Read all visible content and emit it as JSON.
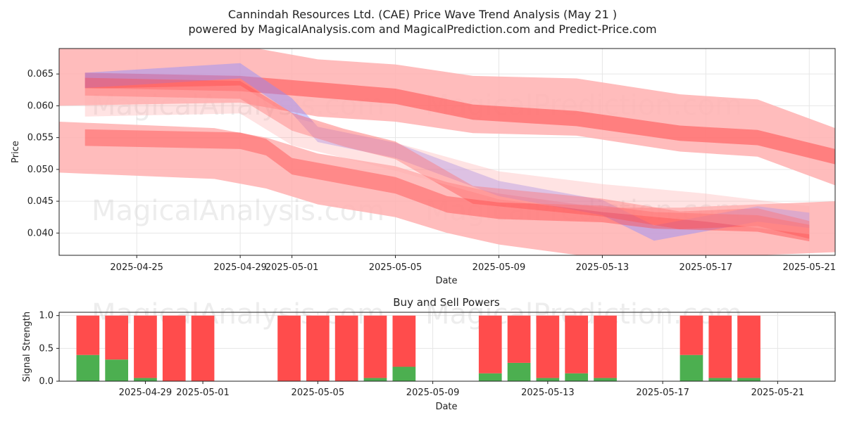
{
  "title_line1": "Cannindah Resources Ltd. (CAE) Price Wave Trend Analysis (May 21 )",
  "title_line2": "powered by MagicalAnalysis.com and MagicalPrediction.com and Predict-Price.com",
  "watermarks": [
    "MagicalAnalysis.com",
    "MagicalPrediction.com"
  ],
  "colors": {
    "red": "#ff4c4c",
    "pink": "#ffb0b0",
    "blue": "#8c8cff",
    "green": "#4caf50"
  },
  "chart_data": [
    {
      "type": "area",
      "title": "",
      "xlabel": "Date",
      "ylabel": "Price",
      "x_domain": [
        "2025-04-22",
        "2025-05-22"
      ],
      "ylim": [
        0.0365,
        0.069
      ],
      "yticks": [
        0.04,
        0.045,
        0.05,
        0.055,
        0.06,
        0.065
      ],
      "ytick_labels": [
        "0.040",
        "0.045",
        "0.050",
        "0.055",
        "0.060",
        "0.065"
      ],
      "xticks": [
        "2025-04-25",
        "2025-04-29",
        "2025-05-01",
        "2025-05-05",
        "2025-05-09",
        "2025-05-13",
        "2025-05-17",
        "2025-05-21"
      ],
      "grid": true,
      "series": [
        {
          "name": "upper wide band",
          "color": "pink",
          "opacity": 0.85,
          "halfwidth": 0.0045,
          "x": [
            "2025-04-22",
            "2025-04-29",
            "2025-05-02",
            "2025-05-05",
            "2025-05-08",
            "2025-05-12",
            "2025-05-16",
            "2025-05-19",
            "2025-05-22"
          ],
          "y": [
            0.0645,
            0.065,
            0.0628,
            0.062,
            0.0602,
            0.0598,
            0.0573,
            0.0565,
            0.052
          ]
        },
        {
          "name": "upper core band",
          "color": "red",
          "opacity": 0.55,
          "halfwidth": 0.0012,
          "x": [
            "2025-04-23",
            "2025-04-29",
            "2025-05-02",
            "2025-05-05",
            "2025-05-08",
            "2025-05-12",
            "2025-05-16",
            "2025-05-19",
            "2025-05-22"
          ],
          "y": [
            0.064,
            0.0635,
            0.0625,
            0.0615,
            0.059,
            0.058,
            0.0557,
            0.055,
            0.052
          ]
        },
        {
          "name": "lower wide band",
          "color": "pink",
          "opacity": 0.85,
          "halfwidth": 0.004,
          "x": [
            "2025-04-22",
            "2025-04-28",
            "2025-04-30",
            "2025-05-02",
            "2025-05-05",
            "2025-05-07",
            "2025-05-09",
            "2025-05-13",
            "2025-05-16",
            "2025-05-19",
            "2025-05-22"
          ],
          "y": [
            0.0535,
            0.0525,
            0.051,
            0.0485,
            0.0465,
            0.044,
            0.0422,
            0.04,
            0.04,
            0.0405,
            0.041
          ]
        },
        {
          "name": "blue band",
          "color": "blue",
          "opacity": 0.45,
          "halfwidth": 0.0012,
          "x": [
            "2025-04-23",
            "2025-04-29",
            "2025-05-01",
            "2025-05-02",
            "2025-05-05",
            "2025-05-09",
            "2025-05-13",
            "2025-05-15",
            "2025-05-19",
            "2025-05-21"
          ],
          "y": [
            0.064,
            0.0655,
            0.06,
            0.0555,
            0.053,
            0.047,
            0.044,
            0.04,
            0.043,
            0.042
          ]
        },
        {
          "name": "mid red band A",
          "color": "red",
          "opacity": 0.4,
          "halfwidth": 0.0014,
          "x": [
            "2025-04-23",
            "2025-04-29",
            "2025-05-01",
            "2025-05-03",
            "2025-05-05",
            "2025-05-08",
            "2025-05-13",
            "2025-05-16",
            "2025-05-19",
            "2025-05-21"
          ],
          "y": [
            0.063,
            0.0625,
            0.0575,
            0.055,
            0.053,
            0.046,
            0.044,
            0.042,
            0.0425,
            0.0405
          ]
        },
        {
          "name": "mid red band B",
          "color": "red",
          "opacity": 0.45,
          "halfwidth": 0.0013,
          "x": [
            "2025-04-23",
            "2025-04-29",
            "2025-04-30",
            "2025-05-01",
            "2025-05-05",
            "2025-05-07",
            "2025-05-09",
            "2025-05-13",
            "2025-05-15",
            "2025-05-19",
            "2025-05-21"
          ],
          "y": [
            0.055,
            0.0545,
            0.0535,
            0.0505,
            0.0475,
            0.0445,
            0.0435,
            0.043,
            0.042,
            0.0415,
            0.04
          ]
        },
        {
          "name": "light pink band",
          "color": "pink",
          "opacity": 0.35,
          "halfwidth": 0.0022,
          "x": [
            "2025-04-23",
            "2025-04-29",
            "2025-05-01",
            "2025-05-05",
            "2025-05-09",
            "2025-05-13",
            "2025-05-17",
            "2025-05-21"
          ],
          "y": [
            0.0605,
            0.061,
            0.056,
            0.052,
            0.0475,
            0.0455,
            0.044,
            0.042
          ]
        }
      ]
    },
    {
      "type": "bar",
      "title": "Buy and Sell Powers",
      "xlabel": "Date",
      "ylabel": "Signal Strength",
      "ylim": [
        0,
        1.05
      ],
      "yticks": [
        0.0,
        0.5,
        1.0
      ],
      "ytick_labels": [
        "0.0",
        "0.5",
        "1.0"
      ],
      "x_domain": [
        "2025-04-26",
        "2025-05-23"
      ],
      "xticks": [
        "2025-04-29",
        "2025-05-01",
        "2025-05-05",
        "2025-05-09",
        "2025-05-13",
        "2025-05-17",
        "2025-05-21"
      ],
      "grid": true,
      "dates": [
        "2025-04-27",
        "2025-04-28",
        "2025-04-29",
        "2025-04-30",
        "2025-05-01",
        "2025-05-04",
        "2025-05-05",
        "2025-05-06",
        "2025-05-07",
        "2025-05-08",
        "2025-05-11",
        "2025-05-12",
        "2025-05-13",
        "2025-05-14",
        "2025-05-15",
        "2025-05-18",
        "2025-05-19",
        "2025-05-20"
      ],
      "buy": [
        0.4,
        0.33,
        0.05,
        0.0,
        0.0,
        0.0,
        0.0,
        0.0,
        0.05,
        0.22,
        0.12,
        0.28,
        0.05,
        0.12,
        0.05,
        0.4,
        0.05,
        0.05
      ],
      "sell": [
        0.6,
        0.67,
        0.95,
        1.0,
        1.0,
        1.0,
        1.0,
        1.0,
        0.95,
        0.78,
        0.88,
        0.72,
        0.95,
        0.88,
        0.95,
        0.6,
        0.95,
        0.95
      ]
    }
  ]
}
